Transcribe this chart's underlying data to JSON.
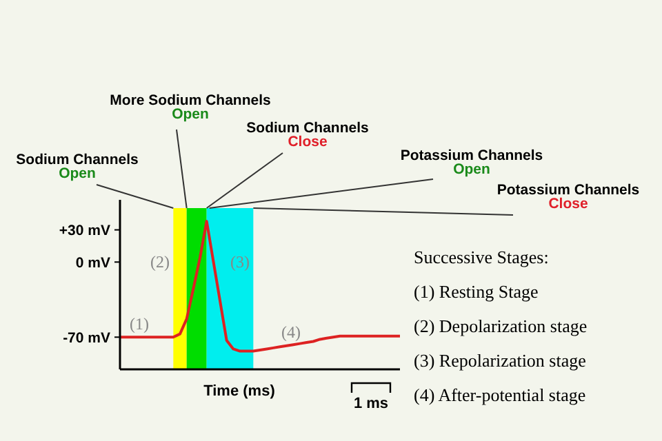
{
  "chart_data": {
    "type": "line",
    "xlabel": "Time (ms)",
    "ylim": [
      -100,
      58
    ],
    "yticks": [
      {
        "value": 30,
        "label": "+30 mV"
      },
      {
        "value": 0,
        "label": "0 mV"
      },
      {
        "value": -70,
        "label": "-70 mV"
      }
    ],
    "tick_labels": "y",
    "marker": "none",
    "line_style": "solid",
    "categories": [
      null,
      null,
      null,
      null,
      null,
      null,
      null,
      null,
      null,
      null,
      null,
      null,
      null,
      null,
      null,
      null,
      null,
      null,
      null,
      null,
      null,
      null,
      null,
      null,
      null,
      null,
      null,
      null,
      null,
      null,
      null,
      null,
      null,
      null,
      null,
      null,
      null,
      null,
      null,
      null,
      null,
      null,
      null
    ],
    "series": [
      {
        "color": "#dd2222",
        "values": [
          -70,
          -70,
          -70,
          -70,
          -70,
          -70,
          -70,
          -70,
          -70,
          -67,
          -53,
          -25,
          4,
          38,
          1,
          -36,
          -73,
          -81,
          -83,
          -83,
          -83,
          -82,
          -81,
          -80,
          -79,
          -78,
          -77,
          -76,
          -75,
          -74,
          -72,
          -71,
          -70,
          -69,
          -69,
          -69,
          -69,
          -69,
          -69,
          -69,
          -69,
          -69,
          -69
        ]
      }
    ],
    "annotations": [
      "Sodium Channels Open",
      "More Sodium Channels Open",
      "Sodium Channels Close",
      "Potassium Channels Open",
      "Potassium Channels Close",
      "(1)",
      "(2)",
      "(3)",
      "(4)",
      "Successive Stages:",
      "(1) Resting Stage",
      "(2) Depolarization stage",
      "(3) Repolarization stage",
      "(4) After-potential stage",
      "1 ms"
    ]
  }
}
